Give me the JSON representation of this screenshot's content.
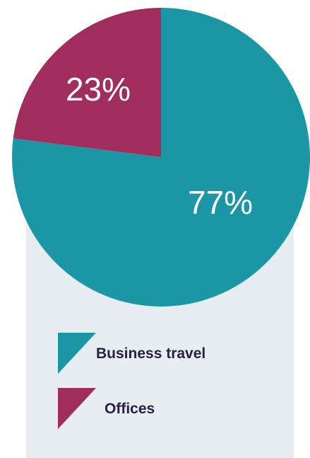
{
  "chart_data": {
    "type": "pie",
    "categories": [
      "Business travel",
      "Offices"
    ],
    "values": [
      77,
      23
    ],
    "value_labels": [
      "77%",
      "23%"
    ],
    "colors": [
      "#1b96a4",
      "#a02d5c"
    ],
    "legend_placement": "bottom",
    "title": ""
  },
  "legend": {
    "items": [
      {
        "label": "Business travel",
        "color": "#1b96a4"
      },
      {
        "label": "Offices",
        "color": "#a02d5c"
      }
    ]
  },
  "colors": {
    "panel_background": "#e7eef2",
    "legend_text": "#2b1e44"
  }
}
